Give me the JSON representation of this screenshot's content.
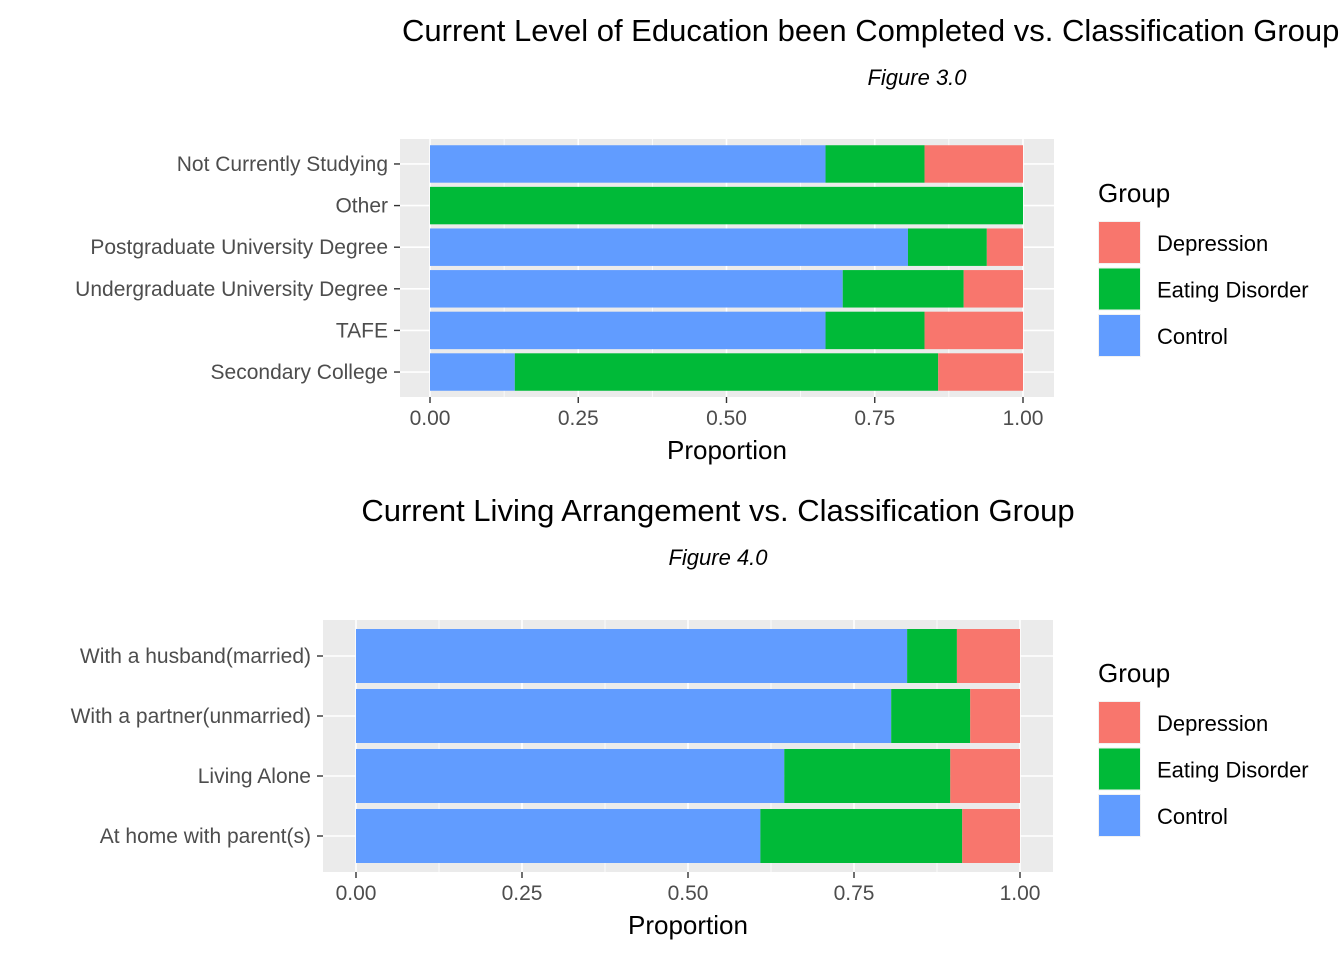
{
  "chart_data": [
    {
      "type": "bar",
      "orientation": "horizontal",
      "stacked": true,
      "title": "Current Level of Education been Completed vs. Classification Group",
      "subtitle": "Figure 3.0",
      "xlabel": "Proportion",
      "ylabel": "",
      "xlim": [
        0,
        1
      ],
      "xticks": [
        "0.00",
        "0.25",
        "0.50",
        "0.75",
        "1.00"
      ],
      "grid": true,
      "legend": {
        "title": "Group",
        "placement": "right"
      },
      "categories": [
        "Not Currently Studying",
        "Other",
        "Postgraduate University Degree",
        "Undergraduate University Degree",
        "TAFE",
        "Secondary College"
      ],
      "series": [
        {
          "name": "Control",
          "color": "#619CFF",
          "values": [
            0.667,
            0.0,
            0.806,
            0.696,
            0.667,
            0.143
          ]
        },
        {
          "name": "Eating Disorder",
          "color": "#00BA38",
          "values": [
            0.167,
            1.0,
            0.133,
            0.204,
            0.167,
            0.714
          ]
        },
        {
          "name": "Depression",
          "color": "#F8766D",
          "values": [
            0.166,
            0.0,
            0.061,
            0.1,
            0.166,
            0.143
          ]
        }
      ],
      "legend_order": [
        "Depression",
        "Eating Disorder",
        "Control"
      ]
    },
    {
      "type": "bar",
      "orientation": "horizontal",
      "stacked": true,
      "title": "Current Living Arrangement vs. Classification Group",
      "subtitle": "Figure 4.0",
      "xlabel": "Proportion",
      "ylabel": "",
      "xlim": [
        0,
        1
      ],
      "xticks": [
        "0.00",
        "0.25",
        "0.50",
        "0.75",
        "1.00"
      ],
      "grid": true,
      "legend": {
        "title": "Group",
        "placement": "right"
      },
      "categories": [
        "With a husband(married)",
        "With a partner(unmarried)",
        "Living Alone",
        "At home with parent(s)"
      ],
      "series": [
        {
          "name": "Control",
          "color": "#619CFF",
          "values": [
            0.83,
            0.806,
            0.645,
            0.609
          ]
        },
        {
          "name": "Eating Disorder",
          "color": "#00BA38",
          "values": [
            0.075,
            0.119,
            0.25,
            0.304
          ]
        },
        {
          "name": "Depression",
          "color": "#F8766D",
          "values": [
            0.095,
            0.075,
            0.105,
            0.087
          ]
        }
      ],
      "legend_order": [
        "Depression",
        "Eating Disorder",
        "Control"
      ]
    }
  ]
}
